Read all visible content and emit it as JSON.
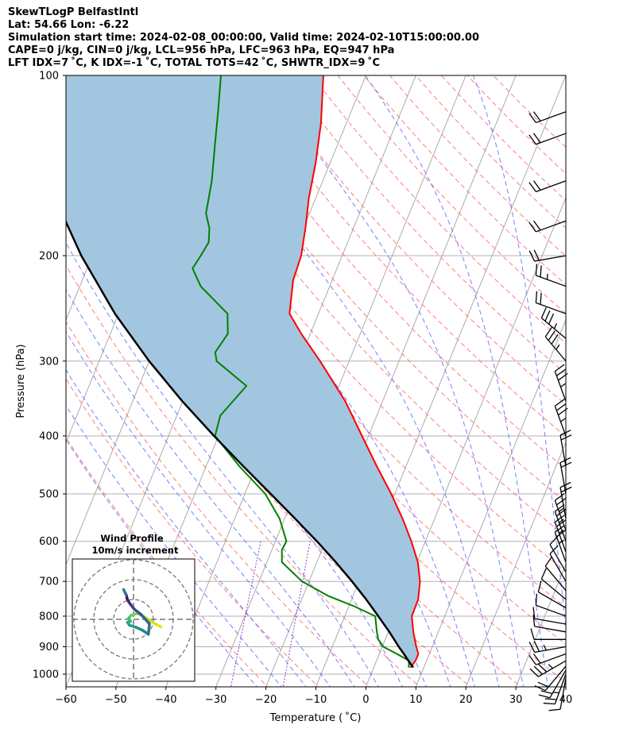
{
  "header": {
    "line1": "SkewTLogP BelfastIntl",
    "line2": "Lat: 54.66   Lon: -6.22",
    "line3": "Simulation start time: 2024-02-08_00:00:00, Valid time: 2024-02-10T15:00:00.00",
    "line4": "CAPE=0 j/kg, CIN=0 j/kg, LCL=956 hPa, LFC=963 hPa, EQ=947 hPa",
    "line5": "LFT IDX=7 ˚C, K IDX=-1 ˚C, TOTAL TOTS=42 ˚C, SHWTR_IDX=9 ˚C"
  },
  "colors": {
    "temperature": "#ff0000",
    "dewpoint": "#008000",
    "parcel": "#000000",
    "cape_fill": "#a3c6e0",
    "dry_adiabat": "#ff6666",
    "moist_adiabat": "#6666ff",
    "mixing_ratio": "#9933cc",
    "isotherm": "#aaaaaa"
  },
  "chart_data": {
    "type": "line",
    "title": "SkewTLogP BelfastIntl",
    "xlabel": "Temperature ($^\\circ$C)",
    "ylabel": "Pressure (hPa)",
    "xlim": [
      -60,
      40
    ],
    "ylim": [
      1050,
      100
    ],
    "x_ticks": [
      "−60",
      "−50",
      "−40",
      "−30",
      "−20",
      "−10",
      "0",
      "10",
      "20",
      "30",
      "40"
    ],
    "y_ticks": [
      "100",
      "200",
      "300",
      "400",
      "500",
      "600",
      "700",
      "800",
      "900",
      "1000"
    ],
    "series": [
      {
        "name": "Temperature",
        "pressure": [
          975,
          950,
          925,
          900,
          850,
          800,
          750,
          700,
          650,
          600,
          550,
          500,
          450,
          400,
          350,
          300,
          270,
          250,
          220,
          200,
          180,
          160,
          140,
          120,
          100
        ],
        "values": [
          7.3,
          7.8,
          7.8,
          6.8,
          5.0,
          3.4,
          3.3,
          2.2,
          0.2,
          -2.8,
          -6.4,
          -10.7,
          -15.8,
          -21.3,
          -27.5,
          -35.8,
          -41.8,
          -45.8,
          -47.8,
          -48.2,
          -49.6,
          -51.4,
          -52.9,
          -55.1,
          -58.5
        ]
      },
      {
        "name": "Dewpoint",
        "pressure": [
          975,
          950,
          925,
          900,
          875,
          850,
          825,
          800,
          770,
          740,
          700,
          650,
          620,
          600,
          550,
          500,
          450,
          400,
          370,
          330,
          300,
          290,
          270,
          250,
          225,
          210,
          200,
          190,
          180,
          170,
          150,
          130,
          115,
          100
        ],
        "values": [
          7.0,
          6.5,
          3.5,
          0.2,
          -1.4,
          -2.3,
          -3.1,
          -3.9,
          -9.0,
          -15.0,
          -21.4,
          -27.0,
          -28.0,
          -27.8,
          -31.0,
          -35.9,
          -43.3,
          -50.7,
          -51.3,
          -48.5,
          -56.5,
          -57.5,
          -56.5,
          -58.2,
          -65.8,
          -68.9,
          -68.3,
          -67.8,
          -68.8,
          -70.7,
          -72.2,
          -74.6,
          -76.6,
          -79.0
        ]
      },
      {
        "name": "Parcel",
        "pressure": [
          975,
          950,
          925,
          900,
          850,
          800,
          750,
          700,
          650,
          600,
          550,
          500,
          450,
          400,
          350,
          300,
          250,
          200,
          175,
          150,
          125,
          100
        ],
        "values": [
          7.9,
          6.4,
          4.9,
          3.3,
          0.2,
          -3.3,
          -7.1,
          -11.4,
          -16.2,
          -21.7,
          -27.9,
          -34.8,
          -42.5,
          -50.9,
          -60.1,
          -70.0,
          -80.7,
          -92.2,
          -98.2,
          -104.6,
          -111.5,
          -118.7
        ]
      }
    ],
    "cape_shading": {
      "label": "parcel vs temperature (stable region)",
      "from_series": "Parcel",
      "to_series": "Temperature"
    },
    "wind_barbs": {
      "pressure": [
        1015,
        1000,
        985,
        970,
        950,
        925,
        900,
        875,
        850,
        825,
        800,
        775,
        750,
        725,
        700,
        675,
        650,
        625,
        600,
        575,
        550,
        500,
        450,
        400,
        350,
        300,
        275,
        250,
        225,
        200,
        175,
        150,
        125,
        115
      ],
      "speed_kt": [
        10,
        15,
        20,
        20,
        25,
        20,
        15,
        10,
        10,
        10,
        10,
        10,
        10,
        10,
        10,
        10,
        15,
        15,
        15,
        15,
        20,
        20,
        20,
        25,
        25,
        25,
        25,
        20,
        15,
        20,
        20,
        20,
        20,
        20
      ],
      "direction_deg": [
        190,
        200,
        210,
        220,
        240,
        250,
        260,
        270,
        280,
        280,
        290,
        300,
        310,
        320,
        330,
        330,
        340,
        340,
        340,
        340,
        350,
        350,
        350,
        340,
        340,
        320,
        310,
        290,
        290,
        260,
        250,
        250,
        250,
        250
      ]
    },
    "inset": {
      "title": "Wind Profile",
      "subtitle": "10m/s increment",
      "ring_increment_ms": 10,
      "rings": 3,
      "hodograph_u": [
        5.5,
        4.5,
        3.2,
        2.0,
        0.8,
        -0.5,
        -1.0,
        -0.6,
        -1.2,
        -0.8,
        0.5,
        1.8,
        3.0,
        3.2,
        1.5,
        0.2,
        -0.6,
        -1.0,
        -1.3,
        -1.4,
        -1.6,
        -1.8,
        -2.0
      ],
      "hodograph_v": [
        -1.5,
        -1.0,
        -0.2,
        0.6,
        1.2,
        0.8,
        0.2,
        -0.4,
        -0.6,
        -1.2,
        -1.6,
        -2.2,
        -3.0,
        -0.9,
        1.0,
        2.0,
        3.0,
        3.6,
        4.2,
        4.8,
        5.2,
        5.6,
        6.0
      ]
    }
  }
}
